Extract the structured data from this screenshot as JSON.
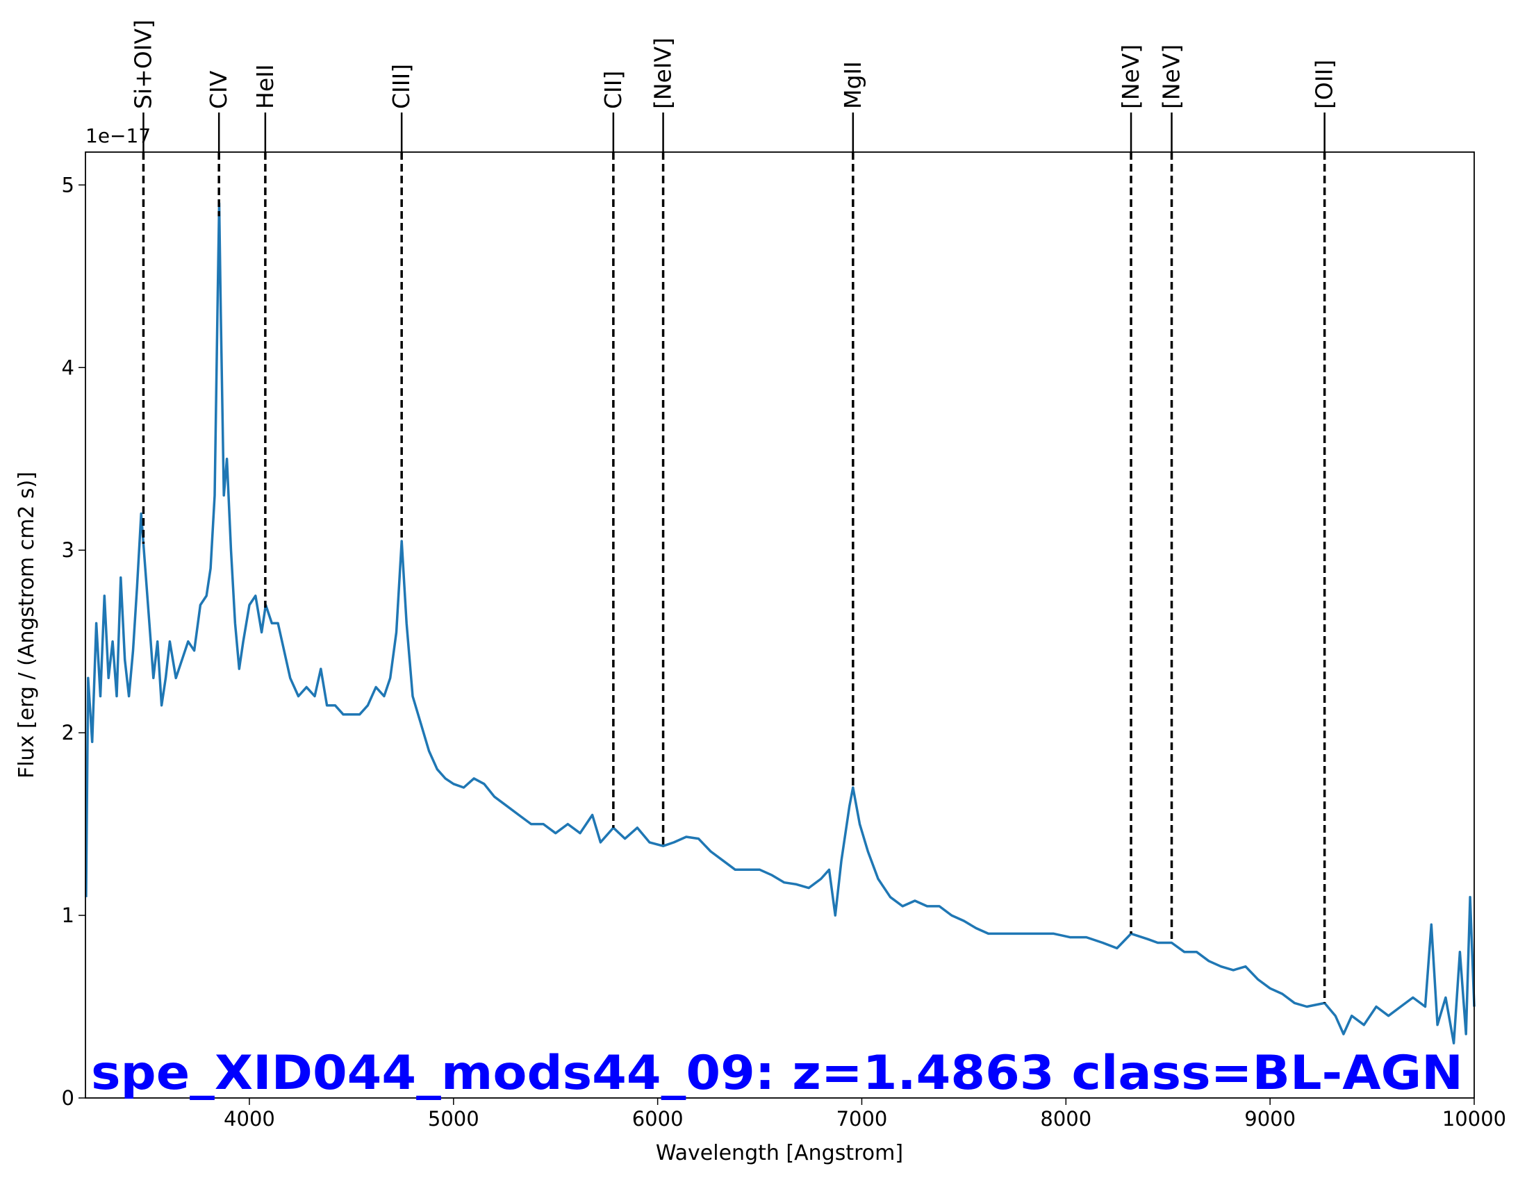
{
  "chart_data": {
    "type": "line",
    "title": "spe_XID044_mods44_09: z=1.4863 class=BL-AGN",
    "title_color": "#0000ff",
    "x_label": "Wavelength [Angstrom]",
    "y_label": "Flux [erg / (Angstrom cm2 s)]",
    "y_offset_text": "1e−17",
    "color": "#1f77b4",
    "xlim": [
      3197,
      10000
    ],
    "ylim": [
      0,
      5.18
    ],
    "xticks": [
      4000,
      5000,
      6000,
      7000,
      8000,
      9000,
      10000
    ],
    "yticks": [
      0,
      1,
      2,
      3,
      4,
      5
    ],
    "lines": [
      {
        "label": "Si+OIV]",
        "x": 3481
      },
      {
        "label": "CIV",
        "x": 3851
      },
      {
        "label": "HeII",
        "x": 4078
      },
      {
        "label": "CIII]",
        "x": 4746
      },
      {
        "label": "CII]",
        "x": 5783
      },
      {
        "label": "[NeIV]",
        "x": 6027
      },
      {
        "label": "MgII",
        "x": 6957
      },
      {
        "label": "[NeV]",
        "x": 8319
      },
      {
        "label": "[NeV]",
        "x": 8518
      },
      {
        "label": "[OII]",
        "x": 9267
      }
    ],
    "x": [
      3200,
      3210,
      3230,
      3250,
      3270,
      3290,
      3310,
      3330,
      3350,
      3370,
      3390,
      3410,
      3430,
      3450,
      3470,
      3490,
      3510,
      3530,
      3550,
      3570,
      3590,
      3610,
      3640,
      3670,
      3700,
      3730,
      3760,
      3790,
      3810,
      3830,
      3845,
      3852,
      3860,
      3875,
      3890,
      3910,
      3930,
      3950,
      3970,
      4000,
      4030,
      4060,
      4080,
      4110,
      4140,
      4170,
      4200,
      4240,
      4280,
      4320,
      4350,
      4380,
      4420,
      4460,
      4500,
      4540,
      4580,
      4620,
      4660,
      4690,
      4720,
      4746,
      4770,
      4800,
      4840,
      4880,
      4920,
      4960,
      5000,
      5050,
      5100,
      5150,
      5200,
      5260,
      5320,
      5380,
      5440,
      5500,
      5560,
      5620,
      5680,
      5720,
      5783,
      5840,
      5900,
      5960,
      6027,
      6080,
      6140,
      6200,
      6260,
      6320,
      6380,
      6440,
      6500,
      6560,
      6620,
      6680,
      6740,
      6800,
      6840,
      6870,
      6900,
      6940,
      6957,
      6990,
      7030,
      7080,
      7140,
      7200,
      7260,
      7320,
      7380,
      7440,
      7500,
      7560,
      7620,
      7700,
      7780,
      7860,
      7940,
      8020,
      8100,
      8180,
      8250,
      8319,
      8400,
      8450,
      8518,
      8580,
      8640,
      8700,
      8760,
      8820,
      8880,
      8940,
      9000,
      9060,
      9120,
      9180,
      9267,
      9320,
      9360,
      9400,
      9460,
      9520,
      9580,
      9640,
      9700,
      9760,
      9790,
      9820,
      9860,
      9900,
      9930,
      9960,
      9980,
      10000
    ],
    "values": [
      1.1,
      2.3,
      1.95,
      2.6,
      2.2,
      2.75,
      2.3,
      2.5,
      2.2,
      2.85,
      2.4,
      2.2,
      2.45,
      2.8,
      3.2,
      2.9,
      2.6,
      2.3,
      2.5,
      2.15,
      2.3,
      2.5,
      2.3,
      2.4,
      2.5,
      2.45,
      2.7,
      2.75,
      2.9,
      3.3,
      4.4,
      4.9,
      4.3,
      3.3,
      3.5,
      3.0,
      2.6,
      2.35,
      2.5,
      2.7,
      2.75,
      2.55,
      2.7,
      2.6,
      2.6,
      2.45,
      2.3,
      2.2,
      2.25,
      2.2,
      2.35,
      2.15,
      2.15,
      2.1,
      2.1,
      2.1,
      2.15,
      2.25,
      2.2,
      2.3,
      2.55,
      3.05,
      2.6,
      2.2,
      2.05,
      1.9,
      1.8,
      1.75,
      1.72,
      1.7,
      1.75,
      1.72,
      1.65,
      1.6,
      1.55,
      1.5,
      1.5,
      1.45,
      1.5,
      1.45,
      1.55,
      1.4,
      1.48,
      1.42,
      1.48,
      1.4,
      1.38,
      1.4,
      1.43,
      1.42,
      1.35,
      1.3,
      1.25,
      1.25,
      1.25,
      1.22,
      1.18,
      1.17,
      1.15,
      1.2,
      1.25,
      1.0,
      1.3,
      1.6,
      1.7,
      1.5,
      1.35,
      1.2,
      1.1,
      1.05,
      1.08,
      1.05,
      1.05,
      1.0,
      0.97,
      0.93,
      0.9,
      0.9,
      0.9,
      0.9,
      0.9,
      0.88,
      0.88,
      0.85,
      0.82,
      0.9,
      0.87,
      0.85,
      0.85,
      0.8,
      0.8,
      0.75,
      0.72,
      0.7,
      0.72,
      0.65,
      0.6,
      0.57,
      0.52,
      0.5,
      0.52,
      0.45,
      0.35,
      0.45,
      0.4,
      0.5,
      0.45,
      0.5,
      0.55,
      0.5,
      0.95,
      0.4,
      0.55,
      0.3,
      0.8,
      0.35,
      1.1,
      0.5
    ]
  }
}
